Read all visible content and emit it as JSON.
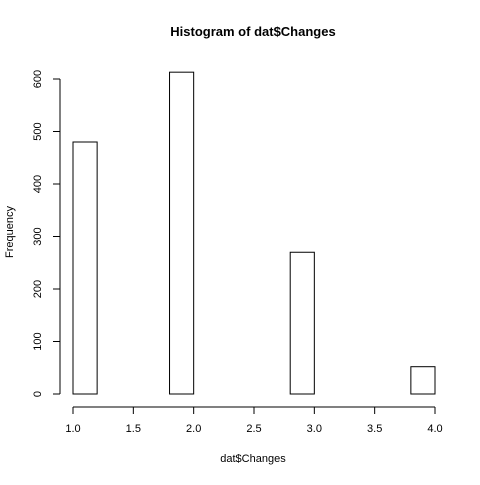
{
  "chart_data": {
    "type": "bar",
    "title": "Histogram of dat$Changes",
    "xlabel": "dat$Changes",
    "ylabel": "Frequency",
    "bins": [
      {
        "start": 1.0,
        "end": 1.2,
        "count": 480
      },
      {
        "start": 1.2,
        "end": 1.4,
        "count": 0
      },
      {
        "start": 1.4,
        "end": 1.6,
        "count": 0
      },
      {
        "start": 1.6,
        "end": 1.8,
        "count": 0
      },
      {
        "start": 1.8,
        "end": 2.0,
        "count": 613
      },
      {
        "start": 2.0,
        "end": 2.2,
        "count": 0
      },
      {
        "start": 2.2,
        "end": 2.4,
        "count": 0
      },
      {
        "start": 2.4,
        "end": 2.6,
        "count": 0
      },
      {
        "start": 2.6,
        "end": 2.8,
        "count": 0
      },
      {
        "start": 2.8,
        "end": 3.0,
        "count": 270
      },
      {
        "start": 3.0,
        "end": 3.2,
        "count": 0
      },
      {
        "start": 3.2,
        "end": 3.4,
        "count": 0
      },
      {
        "start": 3.4,
        "end": 3.6,
        "count": 0
      },
      {
        "start": 3.6,
        "end": 3.8,
        "count": 0
      },
      {
        "start": 3.8,
        "end": 4.0,
        "count": 52
      }
    ],
    "xticks": [
      "1.0",
      "1.5",
      "2.0",
      "2.5",
      "3.0",
      "3.5",
      "4.0"
    ],
    "yticks": [
      "0",
      "100",
      "200",
      "300",
      "400",
      "500",
      "600"
    ],
    "xlim": [
      1.0,
      4.0
    ],
    "ylim": [
      0,
      600
    ],
    "grid": false,
    "colors": {
      "bar_fill": "#ffffff",
      "bar_stroke": "#000000",
      "axis": "#000000"
    }
  }
}
